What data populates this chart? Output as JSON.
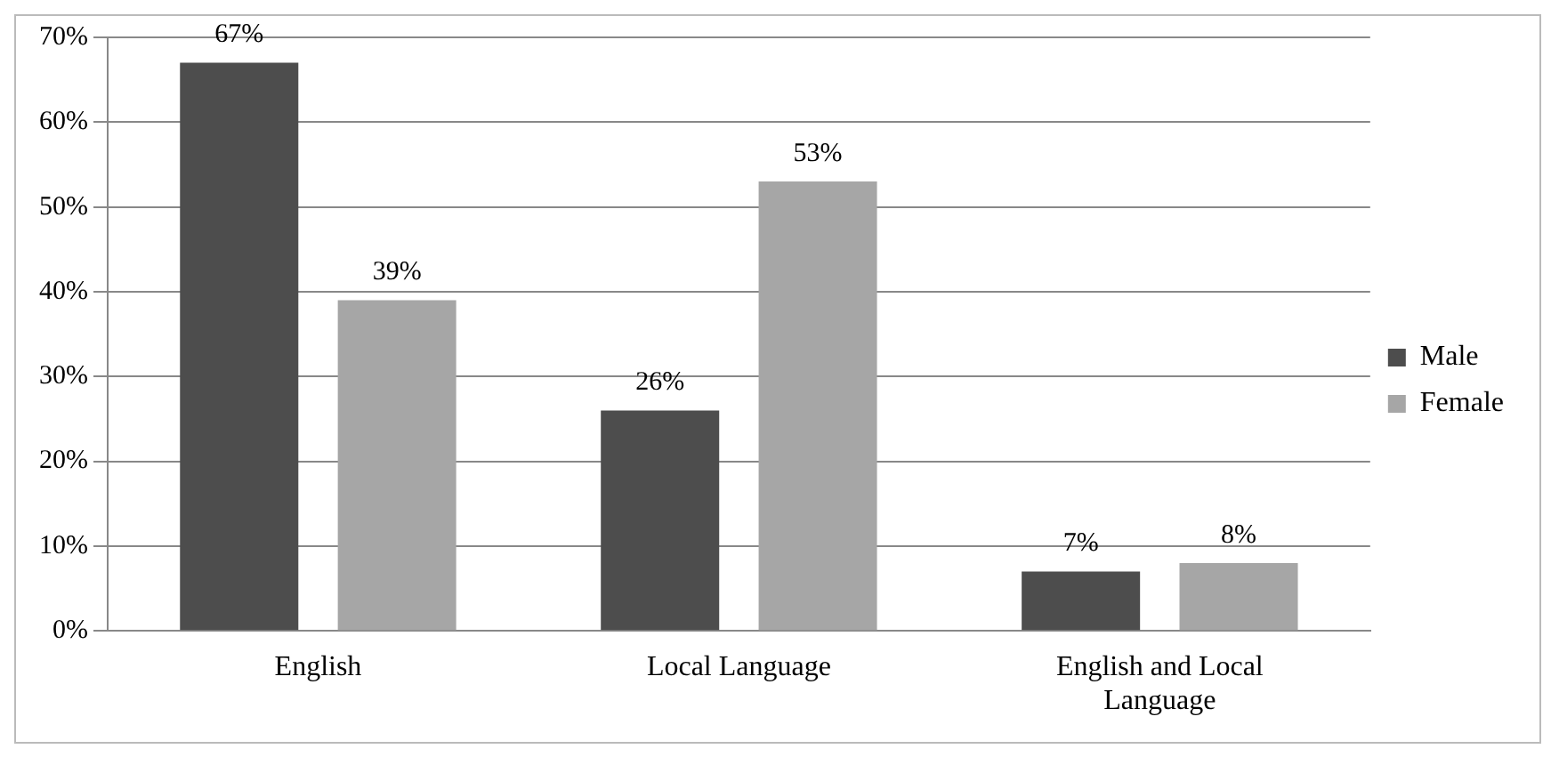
{
  "chart_data": {
    "type": "bar",
    "categories": [
      "English",
      "Local Language",
      "English and Local Language"
    ],
    "series": [
      {
        "name": "Male",
        "color": "#4d4d4d",
        "values": [
          67,
          26,
          7
        ],
        "value_labels": [
          "67%",
          "26%",
          "7%"
        ]
      },
      {
        "name": "Female",
        "color": "#a6a6a6",
        "values": [
          39,
          53,
          8
        ],
        "value_labels": [
          "39%",
          "53%",
          "8%"
        ]
      }
    ],
    "ylim": [
      0,
      70
    ],
    "yticks": [
      {
        "value": 0,
        "label": "0%"
      },
      {
        "value": 10,
        "label": "10%"
      },
      {
        "value": 20,
        "label": "20%"
      },
      {
        "value": 30,
        "label": "30%"
      },
      {
        "value": 40,
        "label": "40%"
      },
      {
        "value": 50,
        "label": "50%"
      },
      {
        "value": 60,
        "label": "60%"
      },
      {
        "value": 70,
        "label": "70%"
      }
    ],
    "grid": "y",
    "legend": "right"
  }
}
